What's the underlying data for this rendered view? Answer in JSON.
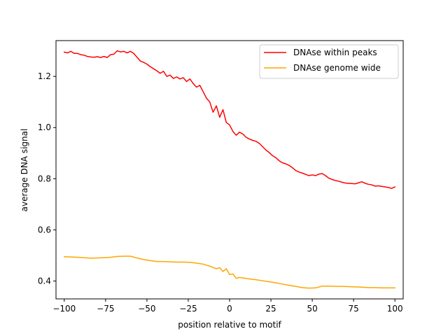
{
  "chart_data": {
    "type": "line",
    "title": "",
    "xlabel": "position relative to motif",
    "ylabel": "average DNA signal",
    "xlim": [
      -105,
      105
    ],
    "ylim": [
      0.33,
      1.34
    ],
    "xticks": [
      -100,
      -75,
      -50,
      -25,
      0,
      25,
      50,
      75,
      100
    ],
    "xtick_labels": [
      "−100",
      "−75",
      "−50",
      "−25",
      "0",
      "25",
      "50",
      "75",
      "100"
    ],
    "yticks": [
      0.4,
      0.6,
      0.8,
      1.0,
      1.2
    ],
    "ytick_labels": [
      "0.4",
      "0.6",
      "0.8",
      "1.0",
      "1.2"
    ],
    "grid": false,
    "legend_position": "top-right",
    "series": [
      {
        "name": "DNAse within peaks",
        "color": "#ff0000",
        "x": [
          -100,
          -98,
          -96,
          -94,
          -92,
          -90,
          -88,
          -86,
          -84,
          -82,
          -80,
          -78,
          -76,
          -74,
          -72,
          -70,
          -68,
          -66,
          -64,
          -62,
          -60,
          -58,
          -56,
          -54,
          -52,
          -50,
          -48,
          -46,
          -44,
          -42,
          -40,
          -38,
          -36,
          -34,
          -32,
          -30,
          -28,
          -26,
          -24,
          -22,
          -20,
          -18,
          -16,
          -14,
          -12,
          -10,
          -8,
          -6,
          -4,
          -2,
          0,
          2,
          4,
          6,
          8,
          10,
          12,
          14,
          16,
          18,
          20,
          22,
          24,
          26,
          28,
          30,
          32,
          34,
          36,
          38,
          40,
          42,
          44,
          46,
          48,
          50,
          52,
          54,
          56,
          58,
          60,
          62,
          64,
          66,
          68,
          70,
          72,
          74,
          76,
          78,
          80,
          82,
          84,
          86,
          88,
          90,
          92,
          94,
          96,
          98,
          100
        ],
        "y": [
          1.295,
          1.292,
          1.298,
          1.29,
          1.29,
          1.285,
          1.283,
          1.278,
          1.276,
          1.275,
          1.277,
          1.274,
          1.278,
          1.274,
          1.285,
          1.287,
          1.3,
          1.296,
          1.298,
          1.292,
          1.298,
          1.29,
          1.275,
          1.26,
          1.255,
          1.248,
          1.238,
          1.23,
          1.222,
          1.212,
          1.22,
          1.2,
          1.205,
          1.192,
          1.198,
          1.19,
          1.195,
          1.18,
          1.19,
          1.172,
          1.158,
          1.165,
          1.14,
          1.115,
          1.1,
          1.06,
          1.085,
          1.04,
          1.07,
          1.02,
          1.01,
          0.985,
          0.97,
          0.982,
          0.975,
          0.962,
          0.955,
          0.95,
          0.946,
          0.938,
          0.925,
          0.912,
          0.902,
          0.89,
          0.882,
          0.87,
          0.862,
          0.858,
          0.852,
          0.843,
          0.832,
          0.826,
          0.822,
          0.817,
          0.812,
          0.815,
          0.812,
          0.818,
          0.82,
          0.812,
          0.802,
          0.797,
          0.793,
          0.79,
          0.786,
          0.783,
          0.782,
          0.781,
          0.78,
          0.784,
          0.788,
          0.782,
          0.778,
          0.776,
          0.771,
          0.772,
          0.77,
          0.768,
          0.766,
          0.762,
          0.768
        ]
      },
      {
        "name": "DNAse genome wide",
        "color": "#ffa500",
        "x": [
          -100,
          -96,
          -92,
          -88,
          -84,
          -80,
          -76,
          -72,
          -68,
          -64,
          -60,
          -56,
          -52,
          -48,
          -44,
          -40,
          -36,
          -32,
          -28,
          -24,
          -20,
          -16,
          -12,
          -8,
          -6,
          -4,
          -2,
          0,
          2,
          4,
          6,
          8,
          12,
          16,
          20,
          24,
          28,
          32,
          36,
          40,
          44,
          48,
          52,
          56,
          60,
          64,
          68,
          72,
          76,
          80,
          84,
          88,
          92,
          96,
          100
        ],
        "y": [
          0.495,
          0.494,
          0.493,
          0.491,
          0.489,
          0.49,
          0.491,
          0.493,
          0.496,
          0.497,
          0.497,
          0.49,
          0.484,
          0.48,
          0.476,
          0.476,
          0.475,
          0.474,
          0.474,
          0.473,
          0.47,
          0.466,
          0.458,
          0.448,
          0.452,
          0.437,
          0.448,
          0.425,
          0.428,
          0.41,
          0.414,
          0.412,
          0.408,
          0.405,
          0.401,
          0.397,
          0.393,
          0.388,
          0.383,
          0.379,
          0.374,
          0.372,
          0.373,
          0.38,
          0.38,
          0.379,
          0.379,
          0.378,
          0.377,
          0.376,
          0.374,
          0.374,
          0.373,
          0.373,
          0.373
        ]
      }
    ]
  }
}
